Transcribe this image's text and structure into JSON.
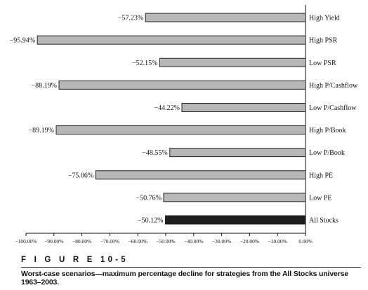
{
  "figure": {
    "label": "F I G U R E   10-5",
    "caption": "Worst-case scenarios—maximum percentage decline for strategies from the All Stocks universe 1963–2003."
  },
  "chart_data": {
    "type": "bar",
    "orientation": "horizontal",
    "categories": [
      "High Yield",
      "High PSR",
      "Low PSR",
      "High P/Cashflow",
      "Low P/Cashflow",
      "High P/Book",
      "Low P/Book",
      "High PE",
      "Low PE",
      "All Stocks"
    ],
    "values": [
      -57.23,
      -95.94,
      -52.15,
      -88.19,
      -44.22,
      -89.19,
      -48.55,
      -75.06,
      -50.76,
      -50.12
    ],
    "value_labels": [
      "−57.23%",
      "−95.94%",
      "−52.15%",
      "−88.19%",
      "−44.22%",
      "−89.19%",
      "−48.55%",
      "−75.06%",
      "−50.76%",
      "−50.12%"
    ],
    "highlight_category": "All Stocks",
    "colors": {
      "bar": "#b7b7b7",
      "highlight": "#1e1e1e",
      "outline": "#222222"
    },
    "xlim": [
      -100,
      0
    ],
    "x_ticks": [
      -100,
      -90,
      -80,
      -70,
      -60,
      -50,
      -40,
      -30,
      -20,
      -10,
      0
    ],
    "x_tick_labels": [
      "−100.00%",
      "−90.00%",
      "−80.00%",
      "−70.00%",
      "−60.00%",
      "−50.00%",
      "−40.00%",
      "−30.00%",
      "−20.00%",
      "−10.00%",
      "0.00%"
    ],
    "title": "",
    "xlabel": "",
    "ylabel": "",
    "grid": false,
    "legend": "none"
  }
}
